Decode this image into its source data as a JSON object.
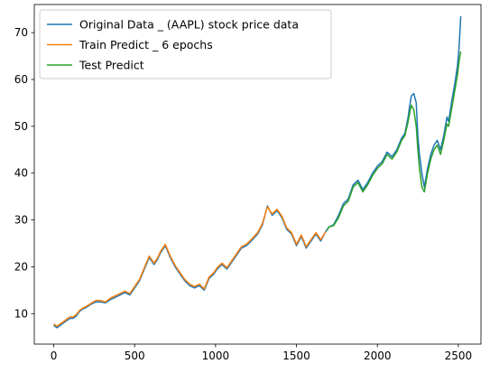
{
  "chart_data": {
    "type": "line",
    "title": "",
    "xlabel": "",
    "ylabel": "",
    "xlim": [
      -120,
      2640
    ],
    "ylim": [
      3.5,
      76
    ],
    "xticks": [
      0,
      500,
      1000,
      1500,
      2000,
      2500
    ],
    "yticks": [
      10,
      20,
      30,
      40,
      50,
      60,
      70
    ],
    "grid": false,
    "legend_position": "top-left",
    "series": [
      {
        "name": "Original Data _  (AAPL) stock price data",
        "color": "#1f77b4",
        "x": [
          0,
          20,
          40,
          60,
          80,
          100,
          120,
          140,
          160,
          180,
          200,
          230,
          260,
          290,
          320,
          350,
          380,
          410,
          440,
          470,
          500,
          530,
          560,
          590,
          620,
          640,
          660,
          690,
          720,
          750,
          780,
          810,
          840,
          870,
          900,
          930,
          960,
          990,
          1010,
          1040,
          1070,
          1100,
          1130,
          1160,
          1190,
          1220,
          1260,
          1290,
          1320,
          1350,
          1380,
          1410,
          1440,
          1470,
          1500,
          1530,
          1560,
          1590,
          1620,
          1650,
          1680,
          1700,
          1730,
          1760,
          1790,
          1820,
          1850,
          1880,
          1910,
          1940,
          1970,
          2000,
          2030,
          2060,
          2090,
          2120,
          2150,
          2170,
          2190,
          2200,
          2210,
          2225,
          2240,
          2250,
          2260,
          2275,
          2290,
          2310,
          2330,
          2350,
          2370,
          2390,
          2410,
          2430,
          2440,
          2460,
          2480,
          2495,
          2505,
          2515
        ],
        "values": [
          7.5,
          7.0,
          7.5,
          8.0,
          8.5,
          9.0,
          9.0,
          9.5,
          10.5,
          11.0,
          11.3,
          12.0,
          12.5,
          12.5,
          12.3,
          13.0,
          13.5,
          14.0,
          14.5,
          14.0,
          15.5,
          17.0,
          19.5,
          22.0,
          20.5,
          21.5,
          23.0,
          24.5,
          22.0,
          20.0,
          18.5,
          17.0,
          16.0,
          15.5,
          16.0,
          15.0,
          17.5,
          18.5,
          19.5,
          20.5,
          19.5,
          21.0,
          22.5,
          24.0,
          24.5,
          25.5,
          27.0,
          29.0,
          33.0,
          31.0,
          32.0,
          30.5,
          28.0,
          27.0,
          24.5,
          26.5,
          24.0,
          25.5,
          27.0,
          25.5,
          27.5,
          28.5,
          29.0,
          31.0,
          33.5,
          34.5,
          37.5,
          38.5,
          36.5,
          38.0,
          40.0,
          41.5,
          42.5,
          44.5,
          43.5,
          45.0,
          47.5,
          48.5,
          52.0,
          54.5,
          56.5,
          57.0,
          55.0,
          48.0,
          44.0,
          40.0,
          37.0,
          41.0,
          44.0,
          46.0,
          47.0,
          45.0,
          48.0,
          52.0,
          51.0,
          55.5,
          59.5,
          63.0,
          67.0,
          73.5
        ]
      },
      {
        "name": "Train Predict _ 6 epochs",
        "color": "#ff7f0e",
        "x": [
          0,
          20,
          40,
          60,
          80,
          100,
          120,
          140,
          160,
          180,
          200,
          230,
          260,
          290,
          320,
          350,
          380,
          410,
          440,
          470,
          500,
          530,
          560,
          590,
          620,
          640,
          660,
          690,
          720,
          750,
          780,
          810,
          840,
          870,
          900,
          930,
          960,
          990,
          1010,
          1040,
          1070,
          1100,
          1130,
          1160,
          1190,
          1220,
          1260,
          1290,
          1320,
          1350,
          1380,
          1410,
          1440,
          1470,
          1500,
          1530,
          1560,
          1590,
          1620,
          1650,
          1680
        ],
        "values": [
          7.8,
          7.3,
          7.8,
          8.3,
          8.8,
          9.3,
          9.3,
          9.8,
          10.7,
          11.2,
          11.5,
          12.2,
          12.8,
          12.8,
          12.5,
          13.3,
          13.8,
          14.3,
          14.8,
          14.3,
          15.8,
          17.3,
          19.8,
          22.3,
          20.8,
          21.8,
          23.3,
          24.8,
          22.3,
          20.3,
          18.8,
          17.3,
          16.3,
          15.8,
          16.3,
          15.3,
          17.8,
          18.8,
          19.8,
          20.8,
          19.8,
          21.3,
          22.8,
          24.3,
          24.8,
          25.8,
          27.3,
          29.3,
          32.8,
          31.3,
          32.3,
          30.8,
          28.3,
          27.3,
          24.8,
          26.8,
          24.3,
          25.8,
          27.3,
          25.8,
          27.5
        ]
      },
      {
        "name": "Test Predict",
        "color": "#2ca02c",
        "x": [
          1690,
          1700,
          1730,
          1760,
          1790,
          1820,
          1850,
          1880,
          1910,
          1940,
          1970,
          2000,
          2030,
          2060,
          2090,
          2120,
          2150,
          2170,
          2190,
          2200,
          2210,
          2225,
          2240,
          2250,
          2260,
          2275,
          2290,
          2310,
          2330,
          2350,
          2370,
          2390,
          2410,
          2430,
          2440,
          2460,
          2480,
          2495,
          2505,
          2515
        ],
        "values": [
          27.8,
          28.5,
          28.8,
          30.5,
          33.0,
          34.0,
          37.0,
          38.0,
          36.0,
          37.5,
          39.5,
          41.0,
          42.0,
          44.0,
          43.0,
          44.5,
          47.0,
          48.0,
          51.0,
          53.0,
          54.5,
          53.5,
          50.0,
          45.0,
          41.0,
          37.0,
          36.0,
          40.0,
          43.0,
          45.0,
          46.0,
          44.0,
          47.0,
          50.5,
          50.0,
          54.0,
          58.0,
          61.0,
          64.0,
          66.0
        ]
      }
    ]
  }
}
